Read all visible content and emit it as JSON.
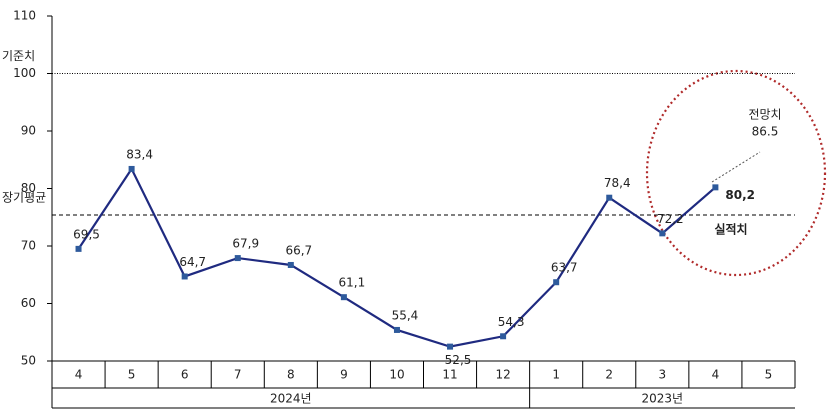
{
  "chart_data": {
    "type": "line",
    "categories": [
      "4",
      "5",
      "6",
      "7",
      "8",
      "9",
      "10",
      "11",
      "12",
      "1",
      "2",
      "3",
      "4",
      "5"
    ],
    "groups": [
      "2024년",
      "2023년"
    ],
    "series": [
      {
        "name": "실적치",
        "color": "#1f2a80",
        "values": [
          69.5,
          83.4,
          64.7,
          67.9,
          66.7,
          61.1,
          55.4,
          52.5,
          54.3,
          63.7,
          78.4,
          72.2,
          80.2,
          null
        ],
        "value_labels": [
          "69,5",
          "83,4",
          "64,7",
          "67,9",
          "66,7",
          "61,1",
          "55,4",
          "52,5",
          "54,3",
          "63,7",
          "78,4",
          "72,2",
          "80,2",
          null
        ]
      }
    ],
    "reference_lines": [
      {
        "label": "기준치",
        "value": 100,
        "style": "dotted"
      },
      {
        "label": "장기평균",
        "value": 75.4,
        "style": "dashed"
      }
    ],
    "annotations": [
      "전망치",
      "86.5"
    ],
    "ylim": [
      50,
      110
    ],
    "yticks": [
      50,
      60,
      70,
      80,
      90,
      100,
      110
    ]
  }
}
